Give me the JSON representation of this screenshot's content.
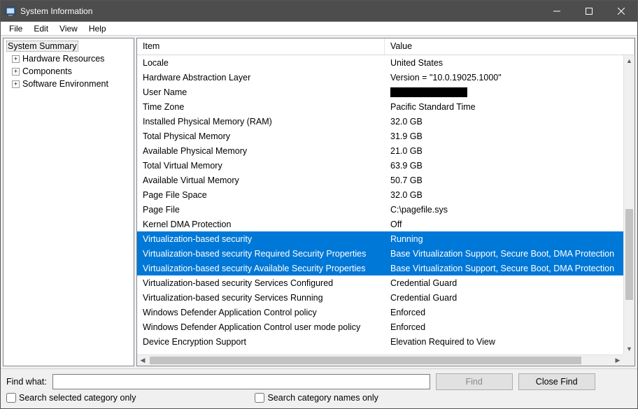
{
  "window": {
    "title": "System Information"
  },
  "menus": [
    "File",
    "Edit",
    "View",
    "Help"
  ],
  "tree": {
    "root": "System Summary",
    "children": [
      "Hardware Resources",
      "Components",
      "Software Environment"
    ]
  },
  "list": {
    "columns": {
      "item": "Item",
      "value": "Value"
    },
    "rows": [
      {
        "item": "Locale",
        "value": "United States",
        "selected": false
      },
      {
        "item": "Hardware Abstraction Layer",
        "value": "Version = \"10.0.19025.1000\"",
        "selected": false
      },
      {
        "item": "User Name",
        "value": "",
        "redacted": true,
        "selected": false
      },
      {
        "item": "Time Zone",
        "value": "Pacific Standard Time",
        "selected": false
      },
      {
        "item": "Installed Physical Memory (RAM)",
        "value": "32.0 GB",
        "selected": false
      },
      {
        "item": "Total Physical Memory",
        "value": "31.9 GB",
        "selected": false
      },
      {
        "item": "Available Physical Memory",
        "value": "21.0 GB",
        "selected": false
      },
      {
        "item": "Total Virtual Memory",
        "value": "63.9 GB",
        "selected": false
      },
      {
        "item": "Available Virtual Memory",
        "value": "50.7 GB",
        "selected": false
      },
      {
        "item": "Page File Space",
        "value": "32.0 GB",
        "selected": false
      },
      {
        "item": "Page File",
        "value": "C:\\pagefile.sys",
        "selected": false
      },
      {
        "item": "Kernel DMA Protection",
        "value": "Off",
        "selected": false
      },
      {
        "item": "Virtualization-based security",
        "value": "Running",
        "selected": true
      },
      {
        "item": "Virtualization-based security Required Security Properties",
        "value": "Base Virtualization Support, Secure Boot, DMA Protection",
        "selected": true
      },
      {
        "item": "Virtualization-based security Available Security Properties",
        "value": "Base Virtualization Support, Secure Boot, DMA Protection",
        "selected": true
      },
      {
        "item": "Virtualization-based security Services Configured",
        "value": "Credential Guard",
        "selected": false
      },
      {
        "item": "Virtualization-based security Services Running",
        "value": "Credential Guard",
        "selected": false
      },
      {
        "item": "Windows Defender Application Control policy",
        "value": "Enforced",
        "selected": false
      },
      {
        "item": "Windows Defender Application Control user mode policy",
        "value": "Enforced",
        "selected": false
      },
      {
        "item": "Device Encryption Support",
        "value": "Elevation Required to View",
        "selected": false
      }
    ]
  },
  "find": {
    "label": "Find what:",
    "value": "",
    "find_btn": "Find",
    "close_btn": "Close Find",
    "cb1": "Search selected category only",
    "cb2": "Search category names only"
  },
  "colors": {
    "titlebar_bg": "#4d4d4d",
    "selection_bg": "#0078d7",
    "selection_fg": "#ffffff",
    "panel_border": "#828790",
    "window_bg": "#f0f0f0"
  }
}
